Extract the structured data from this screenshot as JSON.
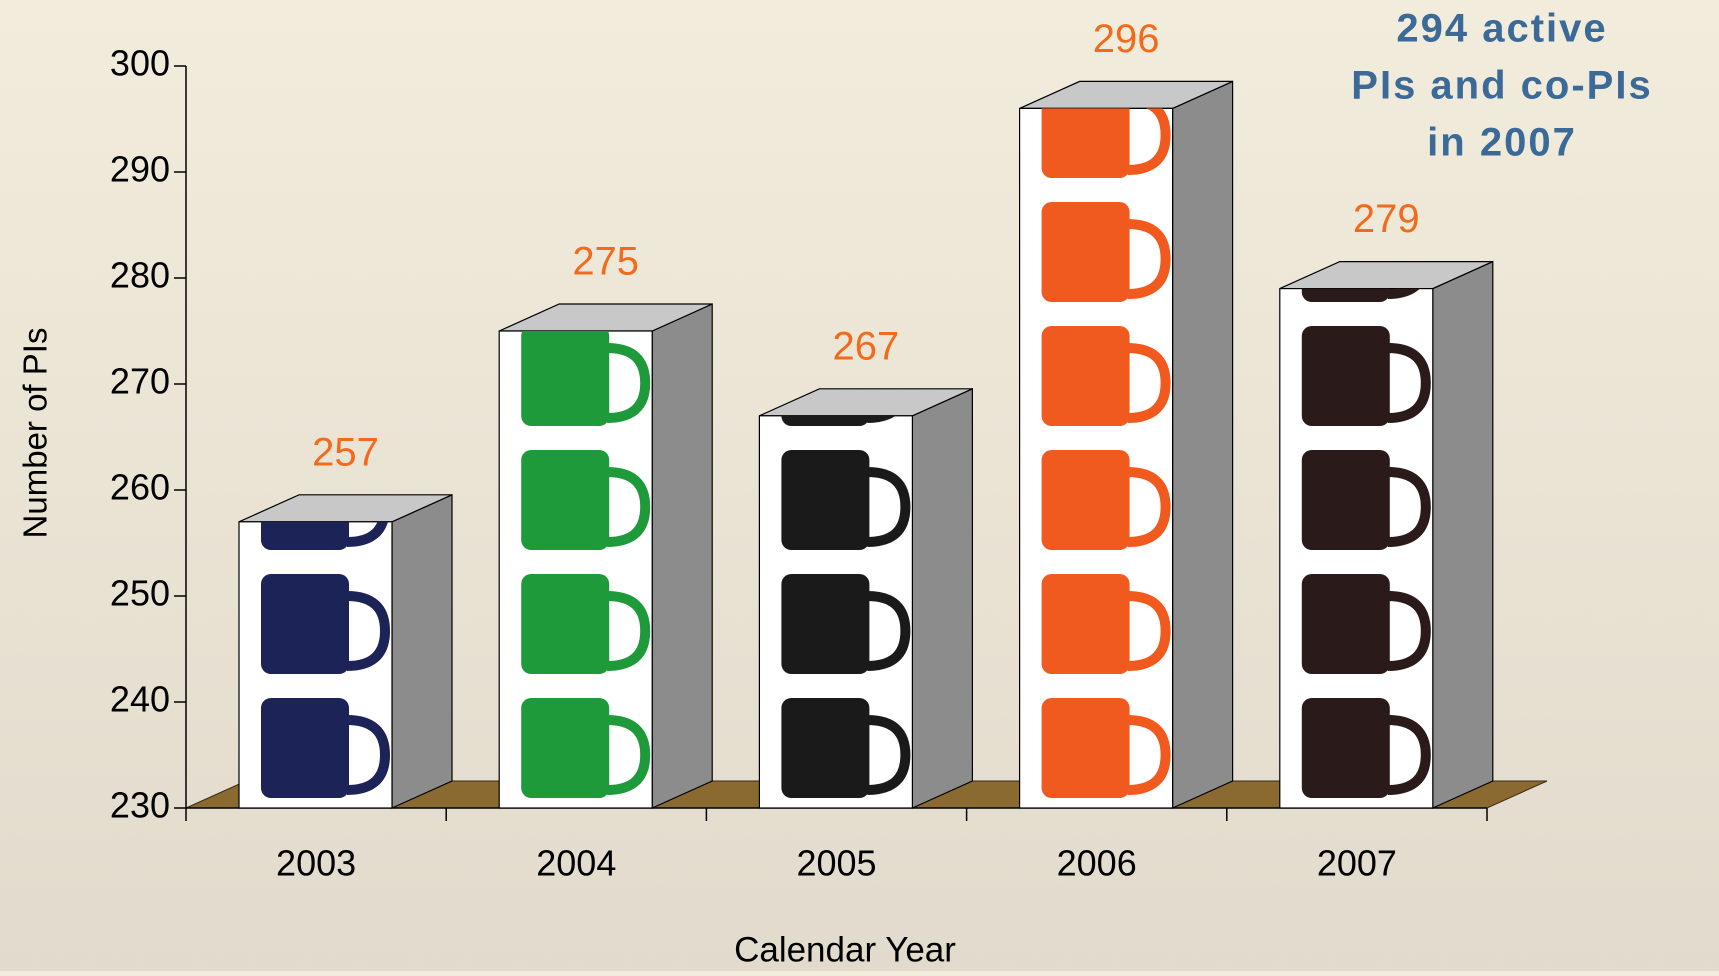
{
  "chart_data": {
    "type": "bar3d",
    "categories": [
      "2003",
      "2004",
      "2005",
      "2006",
      "2007"
    ],
    "values": [
      257,
      275,
      267,
      296,
      279
    ],
    "colors": [
      "#1c2356",
      "#1f9a3a",
      "#1a1a1a",
      "#f05a1e",
      "#2a1a1a"
    ],
    "ylim": [
      230,
      300
    ],
    "yticks": [
      230,
      240,
      250,
      260,
      270,
      280,
      290,
      300
    ],
    "y_label": "Number of PIs",
    "x_label": "Calendar Year",
    "annotation": [
      "294 active",
      "PIs and co-PIs",
      "in 2007"
    ],
    "label_color": "#f26a1b",
    "annotation_color": "#3b6a98",
    "floor_color": "#8a6a30"
  }
}
